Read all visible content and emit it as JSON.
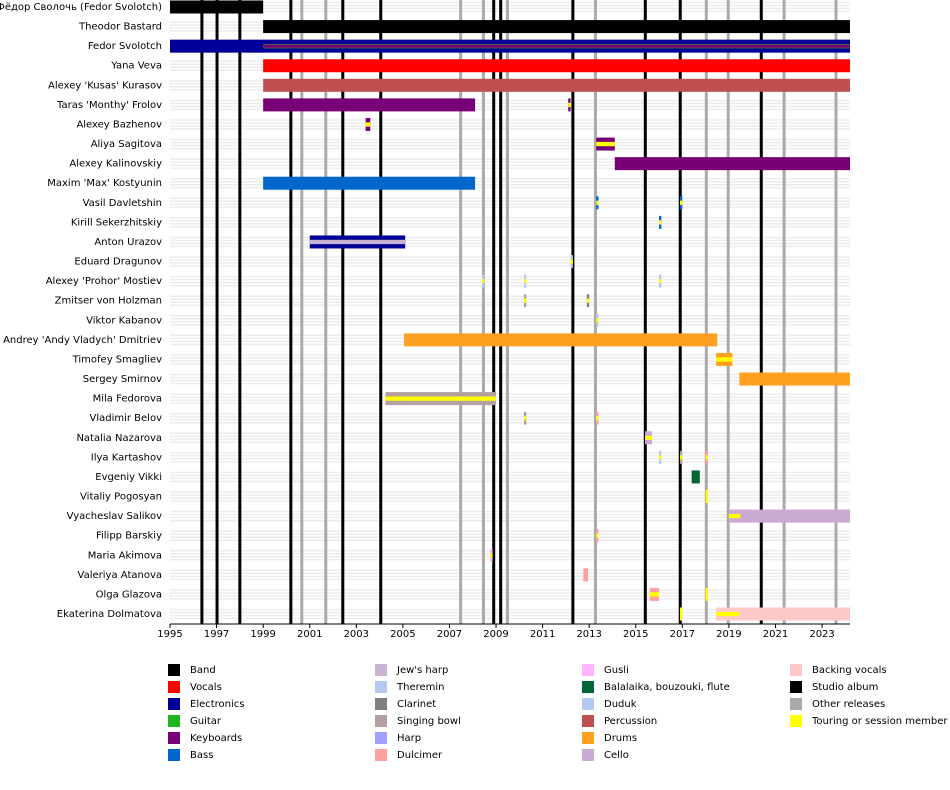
{
  "chart_data": {
    "type": "timeline",
    "xlim": [
      1995,
      2024.2
    ],
    "xticks": [
      1995,
      1997,
      1999,
      2001,
      2003,
      2005,
      2007,
      2009,
      2011,
      2013,
      2015,
      2017,
      2019,
      2021,
      2023
    ],
    "members": [
      "Фёдор Сволочь (Fedor Svolotch)",
      "Theodor Bastard",
      "Fedor Svolotch",
      "Yana Veva",
      "Alexey 'Kusas' Kurasov",
      "Taras 'Monthy' Frolov",
      "Alexey Bazhenov",
      "Aliya Sagitova",
      "Alexey Kalinovskiy",
      "Maxim 'Max' Kostyunin",
      "Vasil Davletshin",
      "Kirill Sekerzhitskiy",
      "Anton Urazov",
      "Eduard Dragunov",
      "Alexey 'Prohor' Mostiev",
      "Zmitser von Holzman",
      "Viktor Kabanov",
      "Andrey 'Andy Vladych' Dmitriev",
      "Timofey Smagliev",
      "Sergey Smirnov",
      "Mila Fedorova",
      "Vladimir Belov",
      "Natalia Nazarova",
      "Ilya Kartashov",
      "Evgeniy Vikki",
      "Vitaliy Pogosyan",
      "Vyacheslav Salikov",
      "Filipp Barskiy",
      "Maria Akimova",
      "Valeriya Atanova",
      "Olga Glazova",
      "Ekaterina Dolmatova"
    ],
    "roles": [
      {
        "name": "Band",
        "color": "#000000"
      },
      {
        "name": "Vocals",
        "color": "#ff0000"
      },
      {
        "name": "Electronics",
        "color": "#000099"
      },
      {
        "name": "Guitar",
        "color": "#1fb51f"
      },
      {
        "name": "Keyboards",
        "color": "#770077"
      },
      {
        "name": "Bass",
        "color": "#0066cc"
      },
      {
        "name": "Jew's harp",
        "color": "#c8b4d2"
      },
      {
        "name": "Theremin",
        "color": "#b4c8f0"
      },
      {
        "name": "Clarinet",
        "color": "#808080"
      },
      {
        "name": "Singing bowl",
        "color": "#b4a0a0"
      },
      {
        "name": "Harp",
        "color": "#a0a0ff"
      },
      {
        "name": "Dulcimer",
        "color": "#ffa0a0"
      },
      {
        "name": "Gusli",
        "color": "#ffb4ff"
      },
      {
        "name": "Balalaika, bouzouki, flute",
        "color": "#006633"
      },
      {
        "name": "Duduk",
        "color": "#b4c8f0"
      },
      {
        "name": "Percussion",
        "color": "#c05050"
      },
      {
        "name": "Drums",
        "color": "#ffa020"
      },
      {
        "name": "Cello",
        "color": "#c8aad2"
      },
      {
        "name": "Backing vocals",
        "color": "#ffc8c8"
      },
      {
        "name": "Touring or session member",
        "color": "#ffff00"
      }
    ],
    "releases": [
      {
        "name": "Studio album",
        "color": "#000000",
        "dates": [
          1996.37,
          1997.02,
          1998.0,
          2000.19,
          2002.42,
          2004.05,
          2008.9,
          2009.2,
          2012.3,
          2015.41,
          2016.91,
          2020.39
        ]
      },
      {
        "name": "Other releases",
        "color": "#aaaaaa",
        "dates": [
          2000.66,
          2001.69,
          2007.48,
          2008.46,
          2009.49,
          2013.27,
          2018.03,
          2018.97,
          2021.37,
          2023.6
        ]
      }
    ],
    "bars": [
      {
        "member": 0,
        "role": 0,
        "start": 1995,
        "end": 1999
      },
      {
        "member": 1,
        "role": 0,
        "start": 1999,
        "end": 2024.2
      },
      {
        "member": 2,
        "role": 2,
        "start": 1995,
        "end": 2024.2
      },
      {
        "member": 2,
        "role": 3,
        "start": 1999,
        "end": 2024.2
      },
      {
        "member": 2,
        "role": 4,
        "start": 1999,
        "end": 2024.2
      },
      {
        "member": 3,
        "role": 1,
        "start": 1999,
        "end": 2024.2
      },
      {
        "member": 4,
        "role": 15,
        "start": 1999,
        "end": 2024.2
      },
      {
        "member": 5,
        "role": 4,
        "start": 1999,
        "end": 2008.1
      },
      {
        "member": 5,
        "role": 4,
        "start": 2012.1,
        "end": 2012.2
      },
      {
        "member": 5,
        "role": 19,
        "start": 2012.1,
        "end": 2012.2
      },
      {
        "member": 6,
        "role": 4,
        "start": 2003.4,
        "end": 2003.6
      },
      {
        "member": 6,
        "role": 19,
        "start": 2003.4,
        "end": 2003.6
      },
      {
        "member": 7,
        "role": 4,
        "start": 2013.3,
        "end": 2014.1
      },
      {
        "member": 7,
        "role": 19,
        "start": 2013.3,
        "end": 2014.1
      },
      {
        "member": 8,
        "role": 4,
        "start": 2014.1,
        "end": 2024.2
      },
      {
        "member": 9,
        "role": 5,
        "start": 1999,
        "end": 2008.1
      },
      {
        "member": 10,
        "role": 5,
        "start": 2013.3,
        "end": 2013.4
      },
      {
        "member": 10,
        "role": 19,
        "start": 2013.3,
        "end": 2013.4
      },
      {
        "member": 10,
        "role": 5,
        "start": 2016.9,
        "end": 2017
      },
      {
        "member": 10,
        "role": 19,
        "start": 2016.9,
        "end": 2017
      },
      {
        "member": 11,
        "role": 5,
        "start": 2016,
        "end": 2016.1
      },
      {
        "member": 11,
        "role": 19,
        "start": 2016,
        "end": 2016.1
      },
      {
        "member": 12,
        "role": 2,
        "start": 2001,
        "end": 2005.1
      },
      {
        "member": 12,
        "role": 6,
        "start": 2001,
        "end": 2005.1
      },
      {
        "member": 13,
        "role": 7,
        "start": 2012.2,
        "end": 2012.3
      },
      {
        "member": 13,
        "role": 19,
        "start": 2012.2,
        "end": 2012.3
      },
      {
        "member": 14,
        "role": 7,
        "start": 2008.4,
        "end": 2008.5
      },
      {
        "member": 14,
        "role": 19,
        "start": 2008.4,
        "end": 2008.5
      },
      {
        "member": 14,
        "role": 7,
        "start": 2010.2,
        "end": 2010.3
      },
      {
        "member": 14,
        "role": 19,
        "start": 2010.2,
        "end": 2010.3
      },
      {
        "member": 14,
        "role": 7,
        "start": 2016,
        "end": 2016.1
      },
      {
        "member": 14,
        "role": 19,
        "start": 2016,
        "end": 2016.1
      },
      {
        "member": 15,
        "role": 9,
        "start": 2010.2,
        "end": 2010.3
      },
      {
        "member": 15,
        "role": 19,
        "start": 2010.2,
        "end": 2010.3
      },
      {
        "member": 15,
        "role": 8,
        "start": 2012.9,
        "end": 2013
      },
      {
        "member": 15,
        "role": 19,
        "start": 2012.9,
        "end": 2013
      },
      {
        "member": 16,
        "role": 7,
        "start": 2013.3,
        "end": 2013.4
      },
      {
        "member": 16,
        "role": 19,
        "start": 2013.3,
        "end": 2013.4
      },
      {
        "member": 17,
        "role": 16,
        "start": 2005.05,
        "end": 2018.5
      },
      {
        "member": 18,
        "role": 16,
        "start": 2018.45,
        "end": 2019.15
      },
      {
        "member": 18,
        "role": 19,
        "start": 2018.45,
        "end": 2019.15
      },
      {
        "member": 19,
        "role": 16,
        "start": 2019.45,
        "end": 2024.2
      },
      {
        "member": 20,
        "role": 9,
        "start": 2004.25,
        "end": 2009
      },
      {
        "member": 20,
        "role": 19,
        "start": 2004.25,
        "end": 2009
      },
      {
        "member": 21,
        "role": 9,
        "start": 2010.2,
        "end": 2010.3
      },
      {
        "member": 21,
        "role": 19,
        "start": 2010.2,
        "end": 2010.3
      },
      {
        "member": 21,
        "role": 11,
        "start": 2013.3,
        "end": 2013.4
      },
      {
        "member": 21,
        "role": 19,
        "start": 2013.3,
        "end": 2013.4
      },
      {
        "member": 22,
        "role": 17,
        "start": 2015.4,
        "end": 2015.7
      },
      {
        "member": 22,
        "role": 19,
        "start": 2015.4,
        "end": 2015.7
      },
      {
        "member": 23,
        "role": 7,
        "start": 2016,
        "end": 2016.1
      },
      {
        "member": 23,
        "role": 19,
        "start": 2016,
        "end": 2016.1
      },
      {
        "member": 23,
        "role": 9,
        "start": 2016.9,
        "end": 2017
      },
      {
        "member": 23,
        "role": 19,
        "start": 2016.9,
        "end": 2017
      },
      {
        "member": 23,
        "role": 11,
        "start": 2018,
        "end": 2018.1
      },
      {
        "member": 23,
        "role": 19,
        "start": 2018,
        "end": 2018.1
      },
      {
        "member": 24,
        "role": 13,
        "start": 2017.4,
        "end": 2017.75
      },
      {
        "member": 25,
        "role": 19,
        "start": 2018,
        "end": 2018.1
      },
      {
        "member": 26,
        "role": 17,
        "start": 2019,
        "end": 2024.2
      },
      {
        "member": 26,
        "role": 19,
        "start": 2019,
        "end": 2019.5
      },
      {
        "member": 27,
        "role": 11,
        "start": 2013.3,
        "end": 2013.4
      },
      {
        "member": 27,
        "role": 19,
        "start": 2013.3,
        "end": 2013.4
      },
      {
        "member": 28,
        "role": 12,
        "start": 2008.75,
        "end": 2008.85
      },
      {
        "member": 28,
        "role": 19,
        "start": 2008.75,
        "end": 2008.85
      },
      {
        "member": 29,
        "role": 11,
        "start": 2012.75,
        "end": 2012.95
      },
      {
        "member": 30,
        "role": 11,
        "start": 2015.6,
        "end": 2016
      },
      {
        "member": 30,
        "role": 19,
        "start": 2015.6,
        "end": 2016
      },
      {
        "member": 30,
        "role": 19,
        "start": 2018,
        "end": 2018.1
      },
      {
        "member": 31,
        "role": 18,
        "start": 2018.45,
        "end": 2024.2
      },
      {
        "member": 31,
        "role": 19,
        "start": 2018.45,
        "end": 2019.45
      },
      {
        "member": 31,
        "role": 19,
        "start": 2016.9,
        "end": 2017
      }
    ]
  }
}
